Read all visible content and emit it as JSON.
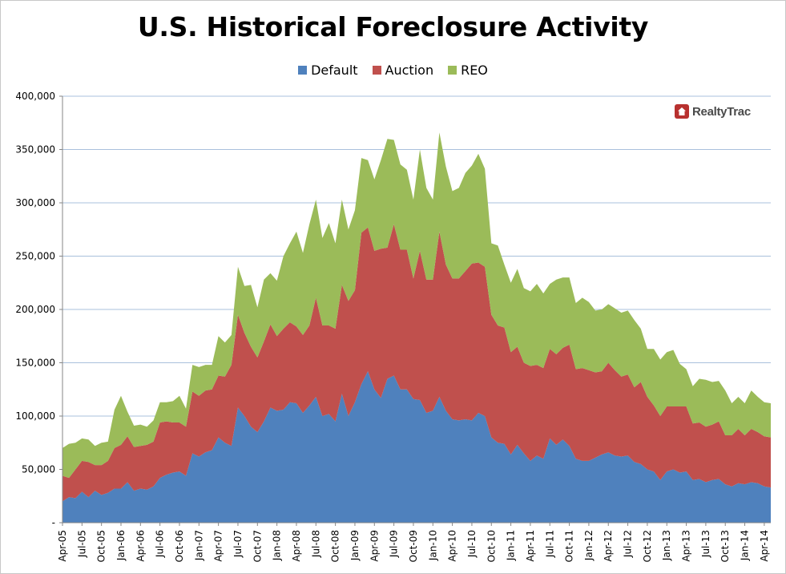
{
  "chart_data": {
    "type": "area",
    "stacked": true,
    "title": "U.S. Historical Foreclosure Activity",
    "xlabel": "",
    "ylabel": "",
    "ylim": [
      0,
      400000
    ],
    "y_ticks": [
      "-",
      "50,000",
      "100,000",
      "150,000",
      "200,000",
      "250,000",
      "300,000",
      "350,000",
      "400,000"
    ],
    "tick_labels": [
      "Apr-05",
      "Jul-05",
      "Oct-05",
      "Jan-06",
      "Apr-06",
      "Jul-06",
      "Oct-06",
      "Jan-07",
      "Apr-07",
      "Jul-07",
      "Oct-07",
      "Jan-08",
      "Apr-08",
      "Jul-08",
      "Oct-08",
      "Jan-09",
      "Apr-09",
      "Jul-09",
      "Oct-09",
      "Jan-10",
      "Apr-10",
      "Jul-10",
      "Oct-10",
      "Jan-11",
      "Apr-11",
      "Jul-11",
      "Oct-11",
      "Jan-12",
      "Apr-12",
      "Jul-12",
      "Oct-12",
      "Jan-13",
      "Apr-13",
      "Jul-13",
      "Oct-13",
      "Jan-14",
      "Apr-14"
    ],
    "legend_position": "top",
    "grid": true,
    "series": [
      {
        "name": "Default",
        "color": "#4f81bd",
        "values": [
          20000,
          24000,
          23000,
          29000,
          24000,
          30000,
          26000,
          28000,
          32000,
          32000,
          38000,
          30000,
          32000,
          31000,
          34000,
          42000,
          45000,
          47000,
          48000,
          44000,
          65000,
          62000,
          66000,
          68000,
          80000,
          75000,
          72000,
          108000,
          100000,
          90000,
          85000,
          95000,
          108000,
          105000,
          106000,
          113000,
          112000,
          103000,
          110000,
          118000,
          100000,
          102000,
          95000,
          121000,
          100000,
          113000,
          130000,
          142000,
          125000,
          117000,
          135000,
          138000,
          125000,
          125000,
          116000,
          115000,
          103000,
          105000,
          118000,
          105000,
          97000,
          96000,
          97000,
          96000,
          103000,
          100000,
          80000,
          75000,
          74000,
          64000,
          73000,
          65000,
          58000,
          63000,
          60000,
          79000,
          73000,
          78000,
          72000,
          60000,
          58000,
          58000,
          61000,
          64000,
          66000,
          63000,
          62000,
          63000,
          57000,
          55000,
          50000,
          48000,
          40000,
          48000,
          50000,
          47000,
          48000,
          40000,
          41000,
          38000,
          40000,
          41000,
          36000,
          34000,
          37000,
          36000,
          38000,
          37000,
          34000,
          33000
        ]
      },
      {
        "name": "Auction",
        "color": "#c0504d",
        "values": [
          24000,
          18000,
          27000,
          29000,
          33000,
          24000,
          28000,
          30000,
          38000,
          41000,
          43000,
          41000,
          40000,
          42000,
          42000,
          52000,
          50000,
          47000,
          46000,
          46000,
          58000,
          57000,
          58000,
          57000,
          58000,
          62000,
          76000,
          87000,
          78000,
          75000,
          70000,
          75000,
          78000,
          70000,
          76000,
          75000,
          72000,
          73000,
          75000,
          93000,
          85000,
          83000,
          87000,
          102000,
          108000,
          105000,
          142000,
          135000,
          130000,
          140000,
          123000,
          142000,
          131000,
          131000,
          113000,
          140000,
          125000,
          123000,
          155000,
          137000,
          132000,
          133000,
          139000,
          147000,
          141000,
          140000,
          115000,
          110000,
          109000,
          96000,
          92000,
          85000,
          89000,
          85000,
          85000,
          84000,
          85000,
          86000,
          95000,
          84000,
          87000,
          85000,
          80000,
          78000,
          84000,
          80000,
          75000,
          76000,
          70000,
          77000,
          68000,
          62000,
          60000,
          61000,
          59000,
          62000,
          61000,
          53000,
          53000,
          52000,
          52000,
          54000,
          46000,
          48000,
          51000,
          46000,
          50000,
          48000,
          47000,
          47000
        ]
      },
      {
        "name": "REO",
        "color": "#9bbb59",
        "values": [
          26000,
          32000,
          25000,
          21000,
          21000,
          18000,
          21000,
          18000,
          36000,
          46000,
          23000,
          20000,
          20000,
          17000,
          20000,
          19000,
          18000,
          20000,
          25000,
          17000,
          25000,
          27000,
          24000,
          23000,
          37000,
          32000,
          28000,
          45000,
          44000,
          58000,
          47000,
          58000,
          48000,
          52000,
          68000,
          74000,
          89000,
          77000,
          95000,
          92000,
          82000,
          96000,
          80000,
          80000,
          67000,
          75000,
          70000,
          63000,
          67000,
          83000,
          102000,
          79000,
          80000,
          75000,
          74000,
          95000,
          86000,
          75000,
          93000,
          92000,
          82000,
          85000,
          92000,
          92000,
          102000,
          92000,
          67000,
          75000,
          59000,
          65000,
          73000,
          70000,
          70000,
          76000,
          70000,
          61000,
          70000,
          66000,
          63000,
          62000,
          66000,
          64000,
          58000,
          58000,
          55000,
          58000,
          60000,
          60000,
          63000,
          50000,
          45000,
          53000,
          53000,
          51000,
          53000,
          40000,
          35000,
          35000,
          41000,
          44000,
          40000,
          38000,
          42000,
          30000,
          30000,
          30000,
          36000,
          33000,
          32000,
          32000
        ]
      }
    ]
  }
}
